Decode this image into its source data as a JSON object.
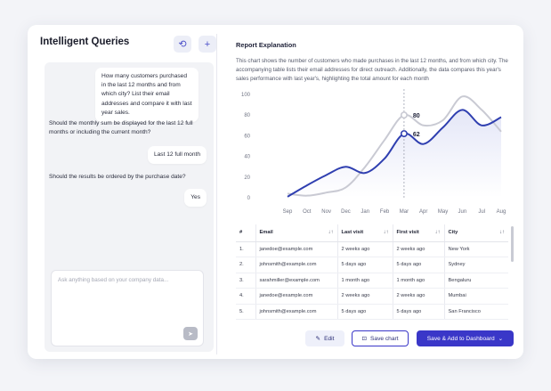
{
  "sidebar": {
    "title": "Intelligent Queries",
    "history_icon": "history-icon",
    "add_icon": "plus-icon",
    "messages": [
      {
        "role": "user",
        "text": "How many customers purchased in the last 12 months and from which city? List their email addresses and compare it with last year sales."
      },
      {
        "role": "assistant",
        "text": "Should the monthly sum be displayed for the last 12 full months or including the current month?"
      },
      {
        "role": "user",
        "text": "Last 12 full month"
      },
      {
        "role": "assistant",
        "text": "Should the results be ordered by the purchase date?"
      },
      {
        "role": "user",
        "text": "Yes"
      }
    ],
    "typing_indicator": "•••",
    "input_placeholder": "Ask anything based on your company data...",
    "send_icon": "send-icon"
  },
  "report": {
    "title": "Report Explanation",
    "description": "This chart shows the number of customers who made purchases in the last 12 months, and from which city. The accompanying table lists their email addresses for direct outreach. Additionally, the data compares this year's sales performance with last year's, highlighting the total amount for each month"
  },
  "chart_data": {
    "type": "line",
    "categories": [
      "Sep",
      "Oct",
      "Nov",
      "Dec",
      "Jan",
      "Feb",
      "Mar",
      "Apr",
      "May",
      "Jun",
      "Jul",
      "Aug"
    ],
    "yticks": [
      0,
      20,
      40,
      60,
      80,
      100
    ],
    "ylim": [
      0,
      100
    ],
    "grid": false,
    "series": [
      {
        "values": [
          1,
          12,
          22,
          30,
          24,
          38,
          62,
          52,
          68,
          85,
          70,
          78
        ],
        "color": "#2f3fb0"
      },
      {
        "values": [
          4,
          2,
          5,
          10,
          30,
          56,
          80,
          70,
          75,
          98,
          85,
          64
        ],
        "color": "#c9cad3"
      }
    ],
    "highlight": {
      "category": "Mar",
      "labels": [
        "80",
        "62"
      ]
    }
  },
  "table": {
    "headers": [
      "#",
      "Email",
      "Last visit",
      "First visit",
      "City"
    ],
    "rows": [
      [
        "1.",
        "janedoe@example.com",
        "2 weeks ago",
        "2 weeks ago",
        "New York"
      ],
      [
        "2.",
        "johnsmith@example.com",
        "5 days ago",
        "5 days ago",
        "Sydney"
      ],
      [
        "3.",
        "sarahmiller@example.com",
        "1 month ago",
        "1 month ago",
        "Bengaluru"
      ],
      [
        "4.",
        "janedoe@example.com",
        "2 weeks ago",
        "2 weeks ago",
        "Mumbai"
      ],
      [
        "5.",
        "johnsmith@example.com",
        "5 days ago",
        "5 days ago",
        "San Francisco"
      ]
    ]
  },
  "actions": {
    "edit_label": "Edit",
    "save_chart_label": "Save chart",
    "dashboard_label": "Save & Add to Dashboard"
  }
}
